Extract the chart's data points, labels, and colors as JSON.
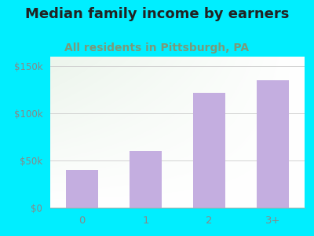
{
  "title": "Median family income by earners",
  "subtitle": "All residents in Pittsburgh, PA",
  "categories": [
    "0",
    "1",
    "2",
    "3+"
  ],
  "values": [
    40000,
    60000,
    122000,
    135000
  ],
  "bar_color": "#c4aee0",
  "title_fontsize": 13,
  "subtitle_fontsize": 10,
  "subtitle_color": "#7a9a7a",
  "title_color": "#222222",
  "background_color": "#00eeff",
  "plot_bg_color_topleft": "#deeedd",
  "plot_bg_color_white": "#f8f8f8",
  "yticks": [
    0,
    50000,
    100000,
    150000
  ],
  "ytick_labels": [
    "$0",
    "$50k",
    "$100k",
    "$150k"
  ],
  "ylim": [
    0,
    160000
  ],
  "tick_color": "#888888"
}
